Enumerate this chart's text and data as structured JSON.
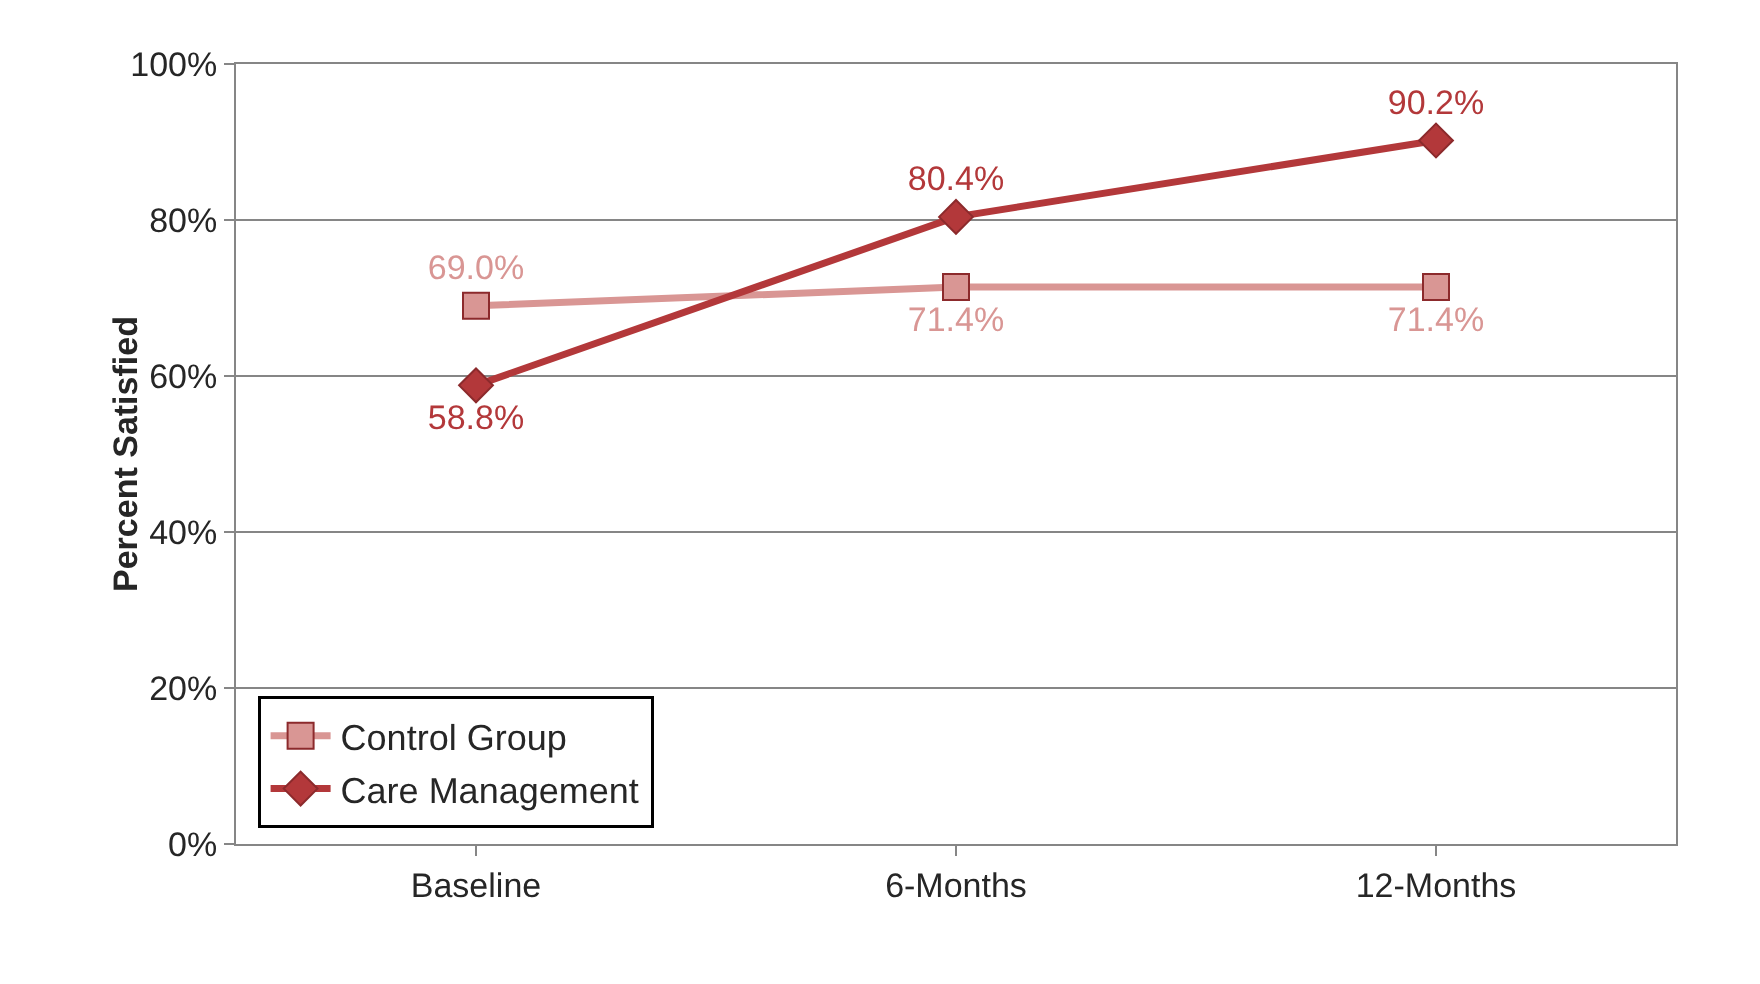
{
  "chart_data": {
    "type": "line",
    "ylabel": "Percent Satisfied",
    "categories": [
      "Baseline",
      "6-Months",
      "12-Months"
    ],
    "series": [
      {
        "name": "Control Group",
        "color": "#d99694",
        "marker": "square",
        "values": [
          69.0,
          71.4,
          71.4
        ]
      },
      {
        "name": "Care Management",
        "color": "#b3383a",
        "marker": "diamond",
        "values": [
          58.8,
          80.4,
          90.2
        ]
      }
    ],
    "value_labels": [
      [
        "69.0%",
        "71.4%",
        "71.4%"
      ],
      [
        "58.8%",
        "80.4%",
        "90.2%"
      ]
    ],
    "ylim": [
      0,
      100
    ],
    "yticks": [
      {
        "value": 0,
        "label": "0%"
      },
      {
        "value": 20,
        "label": "20%"
      },
      {
        "value": 40,
        "label": "40%"
      },
      {
        "value": 60,
        "label": "60%"
      },
      {
        "value": 80,
        "label": "80%"
      },
      {
        "value": 100,
        "label": "100%"
      }
    ],
    "grid": "y",
    "legend": "bottom left"
  }
}
